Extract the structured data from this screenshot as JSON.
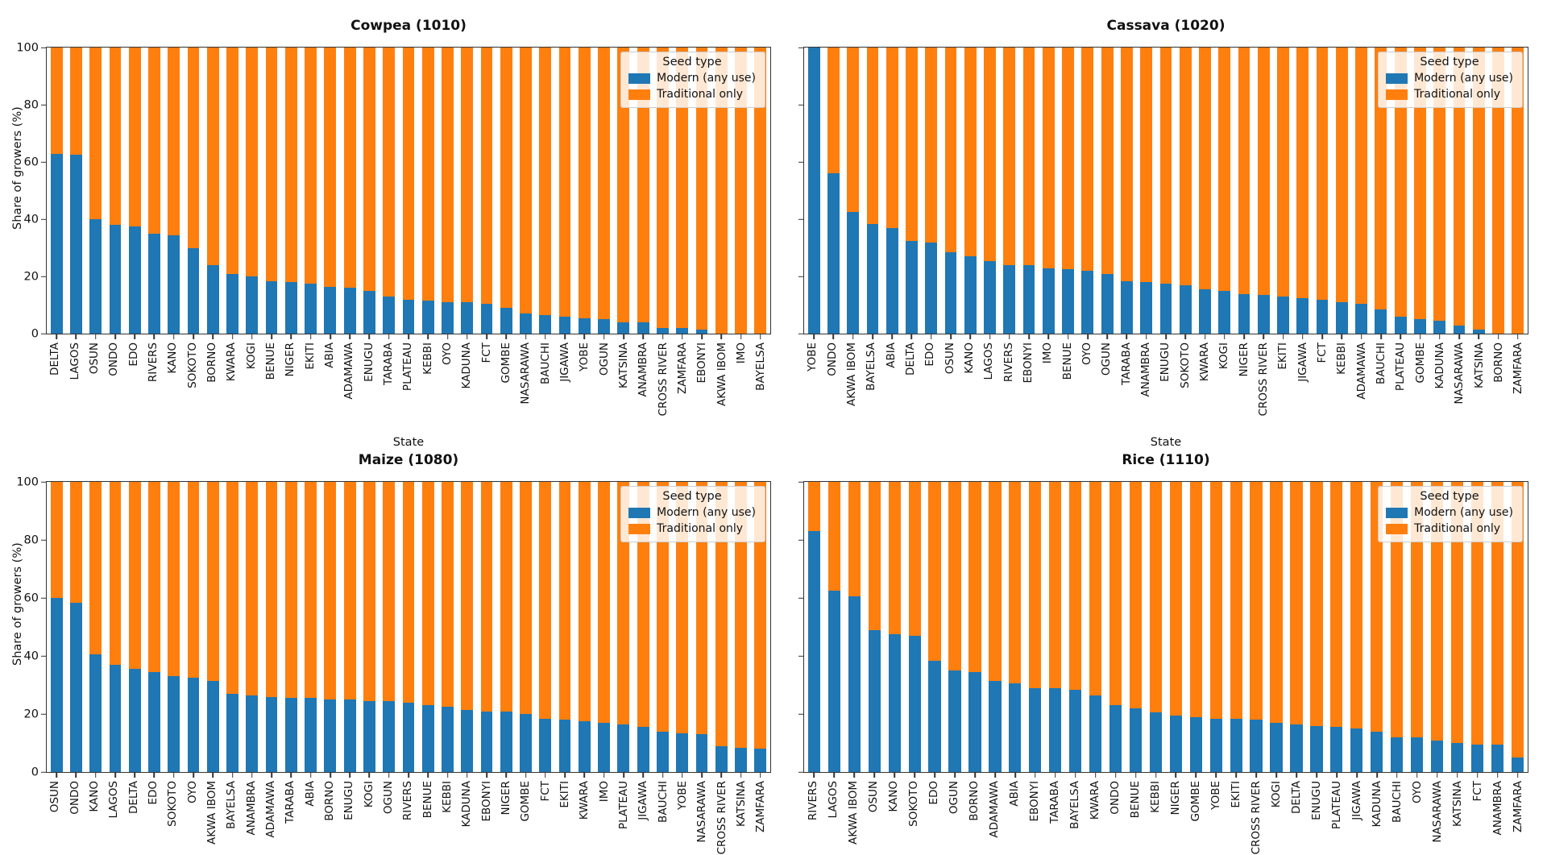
{
  "figure": {
    "ylabel": "Share of growers (%)",
    "xlabel": "State",
    "yticks": [
      0,
      20,
      40,
      60,
      80,
      100
    ],
    "colors": {
      "modern": "#1f77b4",
      "traditional": "#ff7f0e",
      "spine": "#333333"
    },
    "legend": {
      "title": "Seed type",
      "items": [
        {
          "label": "Modern (any use)",
          "color": "#1f77b4"
        },
        {
          "label": "Traditional only",
          "color": "#ff7f0e"
        }
      ]
    }
  },
  "chart_data": [
    {
      "type": "bar",
      "stacked": true,
      "title": "Cowpea (1010)",
      "xlabel": "State",
      "ylabel": "Share of growers (%)",
      "ylim": [
        0,
        100
      ],
      "grid": false,
      "legend_position": "upper right",
      "categories": [
        "DELTA",
        "LAGOS",
        "OSUN",
        "ONDO",
        "EDO",
        "RIVERS",
        "KANO",
        "SOKOTO",
        "BORNO",
        "KWARA",
        "KOGI",
        "BENUE",
        "NIGER",
        "EKITI",
        "ABIA",
        "ADAMAWA",
        "ENUGU",
        "TARABA",
        "PLATEAU",
        "KEBBI",
        "OYO",
        "KADUNA",
        "FCT",
        "GOMBE",
        "NASARAWA",
        "BAUCHI",
        "JIGAWA",
        "YOBE",
        "OGUN",
        "KATSINA",
        "ANAMBRA",
        "CROSS RIVER",
        "ZAMFARA",
        "EBONYI",
        "AKWA IBOM",
        "IMO",
        "BAYELSA"
      ],
      "series": [
        {
          "name": "Modern (any use)",
          "values": [
            63,
            62.5,
            40,
            38,
            37.5,
            35,
            34.5,
            30,
            24,
            21,
            20,
            18.5,
            18,
            17.5,
            16.5,
            16,
            15,
            13,
            12,
            11.5,
            11,
            11,
            10.5,
            9,
            7,
            6.5,
            6,
            5.5,
            5,
            4,
            4,
            2,
            2,
            1.5,
            0,
            0,
            0
          ]
        },
        {
          "name": "Traditional only",
          "values": [
            37,
            37.5,
            60,
            62,
            62.5,
            65,
            65.5,
            70,
            76,
            79,
            80,
            81.5,
            82,
            82.5,
            83.5,
            84,
            85,
            87,
            88,
            88.5,
            89,
            89,
            89.5,
            91,
            93,
            93.5,
            94,
            94.5,
            95,
            96,
            96,
            98,
            98,
            98.5,
            100,
            100,
            100
          ]
        }
      ]
    },
    {
      "type": "bar",
      "stacked": true,
      "title": "Cassava (1020)",
      "xlabel": "State",
      "ylabel": "Share of growers (%)",
      "ylim": [
        0,
        100
      ],
      "grid": false,
      "legend_position": "upper right",
      "categories": [
        "YOBE",
        "ONDO",
        "AKWA IBOM",
        "BAYELSA",
        "ABIA",
        "DELTA",
        "EDO",
        "OSUN",
        "KANO",
        "LAGOS",
        "RIVERS",
        "EBONYI",
        "IMO",
        "BENUE",
        "OYO",
        "OGUN",
        "TARABA",
        "ANAMBRA",
        "ENUGU",
        "SOKOTO",
        "KWARA",
        "KOGI",
        "NIGER",
        "CROSS RIVER",
        "EKITI",
        "JIGAWA",
        "FCT",
        "KEBBI",
        "ADAMAWA",
        "BAUCHI",
        "PLATEAU",
        "GOMBE",
        "KADUNA",
        "NASARAWA",
        "KATSINA",
        "BORNO",
        "ZAMFARA"
      ],
      "series": [
        {
          "name": "Modern (any use)",
          "values": [
            100,
            56,
            42.5,
            38.5,
            37,
            32.5,
            32,
            28.5,
            27,
            25.5,
            24,
            24,
            23,
            22.5,
            22,
            21,
            18.5,
            18,
            17.5,
            17,
            15.5,
            15,
            14,
            13.5,
            13,
            12.5,
            12,
            11,
            10.5,
            8.5,
            6,
            5,
            4.5,
            3,
            1.5,
            0,
            0
          ]
        },
        {
          "name": "Traditional only",
          "values": [
            0,
            44,
            57.5,
            61.5,
            63,
            67.5,
            68,
            71.5,
            73,
            74.5,
            76,
            76,
            77,
            77.5,
            78,
            79,
            81.5,
            82,
            82.5,
            83,
            84.5,
            85,
            86,
            86.5,
            87,
            87.5,
            88,
            89,
            89.5,
            91.5,
            94,
            95,
            95.5,
            97,
            98.5,
            100,
            100
          ]
        }
      ]
    },
    {
      "type": "bar",
      "stacked": true,
      "title": "Maize (1080)",
      "xlabel": "State",
      "ylabel": "Share of growers (%)",
      "ylim": [
        0,
        100
      ],
      "grid": false,
      "legend_position": "upper right",
      "categories": [
        "OSUN",
        "ONDO",
        "KANO",
        "LAGOS",
        "DELTA",
        "EDO",
        "SOKOTO",
        "OYO",
        "AKWA IBOM",
        "BAYELSA",
        "ANAMBRA",
        "ADAMAWA",
        "TARABA",
        "ABIA",
        "BORNO",
        "ENUGU",
        "KOGI",
        "OGUN",
        "RIVERS",
        "BENUE",
        "KEBBI",
        "KADUNA",
        "EBONYI",
        "NIGER",
        "GOMBE",
        "FCT",
        "EKITI",
        "KWARA",
        "IMO",
        "PLATEAU",
        "JIGAWA",
        "BAUCHI",
        "YOBE",
        "NASARAWA",
        "CROSS RIVER",
        "KATSINA",
        "ZAMFARA"
      ],
      "series": [
        {
          "name": "Modern (any use)",
          "values": [
            60,
            58.5,
            40.5,
            37,
            35.5,
            34.5,
            33,
            32.5,
            31.5,
            27,
            26.5,
            26,
            25.5,
            25.5,
            25,
            25,
            24.5,
            24.5,
            24,
            23,
            22.5,
            21.5,
            21,
            21,
            20,
            18.5,
            18,
            17.5,
            17,
            16.5,
            15.5,
            14,
            13.5,
            13,
            9,
            8.5,
            8
          ]
        },
        {
          "name": "Traditional only",
          "values": [
            40,
            41.5,
            59.5,
            63,
            64.5,
            65.5,
            67,
            67.5,
            68.5,
            73,
            73.5,
            74,
            74.5,
            74.5,
            75,
            75,
            75.5,
            75.5,
            76,
            77,
            77.5,
            78.5,
            79,
            79,
            80,
            81.5,
            82,
            82.5,
            83,
            83.5,
            84.5,
            86,
            86.5,
            87,
            91,
            91.5,
            92
          ]
        }
      ]
    },
    {
      "type": "bar",
      "stacked": true,
      "title": "Rice (1110)",
      "xlabel": "State",
      "ylabel": "Share of growers (%)",
      "ylim": [
        0,
        100
      ],
      "grid": false,
      "legend_position": "upper right",
      "categories": [
        "RIVERS",
        "LAGOS",
        "AKWA IBOM",
        "OSUN",
        "KANO",
        "SOKOTO",
        "EDO",
        "OGUN",
        "BORNO",
        "ADAMAWA",
        "ABIA",
        "EBONYI",
        "TARABA",
        "BAYELSA",
        "KWARA",
        "ONDO",
        "BENUE",
        "KEBBI",
        "NIGER",
        "GOMBE",
        "YOBE",
        "EKITI",
        "CROSS RIVER",
        "KOGI",
        "DELTA",
        "ENUGU",
        "PLATEAU",
        "JIGAWA",
        "KADUNA",
        "BAUCHI",
        "OYO",
        "NASARAWA",
        "KATSINA",
        "FCT",
        "ANAMBRA",
        "ZAMFARA"
      ],
      "series": [
        {
          "name": "Modern (any use)",
          "values": [
            83,
            62.5,
            60.5,
            49,
            47.5,
            47,
            38.5,
            35,
            34.5,
            31.5,
            30.5,
            29,
            29,
            28.5,
            26.5,
            23,
            22,
            20.5,
            19.5,
            19,
            18.5,
            18.5,
            18,
            17,
            16.5,
            16,
            15.5,
            15,
            14,
            12,
            12,
            11,
            10,
            9.5,
            9.5,
            5
          ]
        },
        {
          "name": "Traditional only",
          "values": [
            17,
            37.5,
            39.5,
            51,
            52.5,
            53,
            61.5,
            65,
            65.5,
            68.5,
            69.5,
            71,
            71,
            71.5,
            73.5,
            77,
            78,
            79.5,
            80.5,
            81,
            81.5,
            81.5,
            82,
            83,
            83.5,
            84,
            84.5,
            85,
            86,
            88,
            88,
            89,
            90,
            90.5,
            90.5,
            95
          ]
        }
      ]
    }
  ]
}
